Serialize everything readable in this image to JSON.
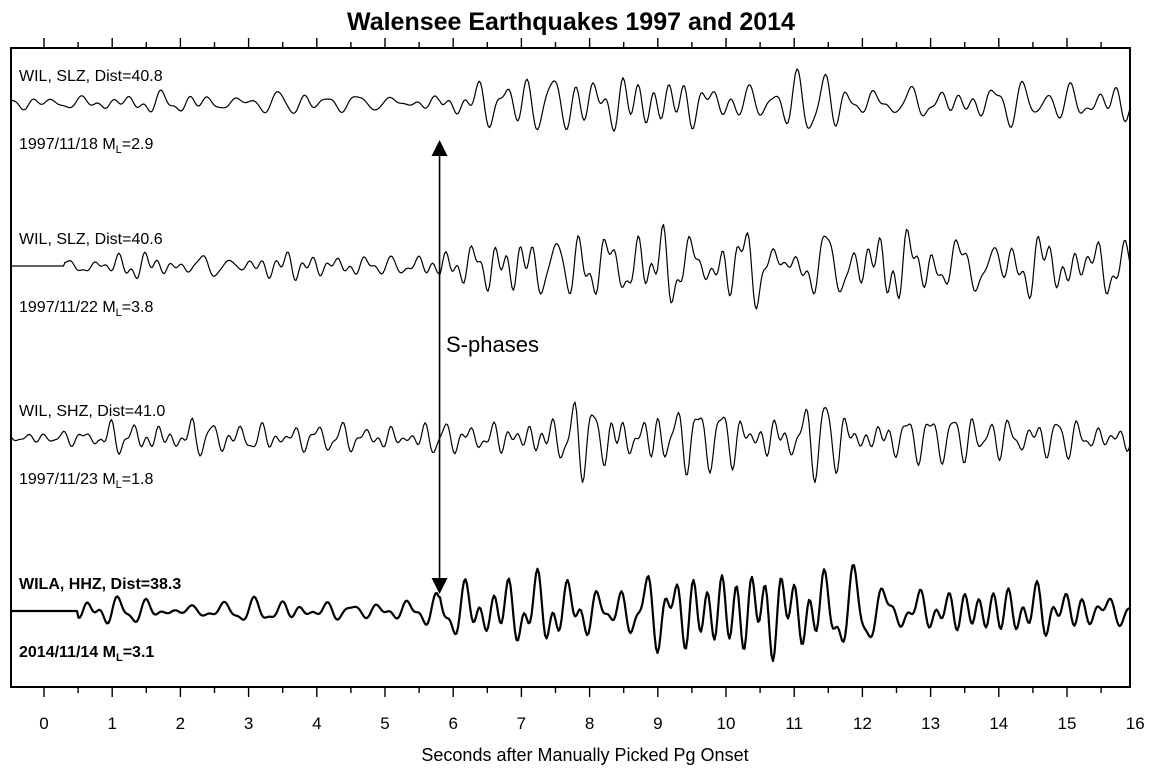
{
  "chart_data": {
    "type": "line",
    "title": "Walensee Earthquakes 1997 and 2014",
    "xlabel": "Seconds after Manually Picked Pg Onset",
    "ylabel": "",
    "xlim": [
      -0.5,
      16
    ],
    "xticks": [
      0,
      1,
      2,
      3,
      4,
      5,
      6,
      7,
      8,
      9,
      10,
      11,
      12,
      13,
      14,
      15,
      16
    ],
    "grid": false,
    "series": [
      {
        "station": "WIL, SLZ, Dist=40.8",
        "event": "1997/11/18 M",
        "magnitude": "=2.9",
        "sub": "L",
        "bold": false,
        "s_arrival": 5.8
      },
      {
        "station": "WIL, SLZ, Dist=40.6",
        "event": "1997/11/22 M",
        "magnitude": "=3.8",
        "sub": "L",
        "bold": false,
        "s_arrival": 5.8
      },
      {
        "station": "WIL, SHZ, Dist=41.0",
        "event": "1997/11/23 M",
        "magnitude": "=1.8",
        "sub": "L",
        "bold": false,
        "s_arrival": 5.8
      },
      {
        "station": "WILA, HHZ, Dist=38.3",
        "event": "2014/11/14 M",
        "magnitude": "=3.1",
        "sub": "L",
        "bold": true,
        "s_arrival": 5.8
      }
    ],
    "annotations": [
      {
        "text": "S-phases",
        "x": 5.8,
        "from_trace": 0,
        "to_trace": 3
      }
    ]
  }
}
